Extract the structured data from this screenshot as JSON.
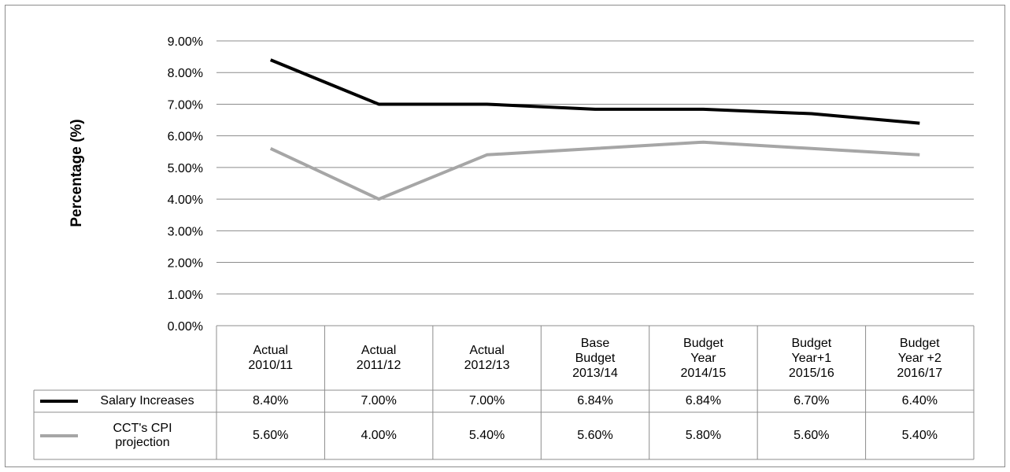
{
  "chart_data": {
    "type": "line",
    "title": "",
    "xlabel": "",
    "ylabel": "Percentage (%)",
    "ylim": [
      0,
      9
    ],
    "ytick_step": 1,
    "yticks": [
      "0.00%",
      "1.00%",
      "2.00%",
      "3.00%",
      "4.00%",
      "5.00%",
      "6.00%",
      "7.00%",
      "8.00%",
      "9.00%"
    ],
    "grid": true,
    "legend_placement": "data-table",
    "categories": [
      "Actual\n2010/11",
      "Actual\n2011/12",
      "Actual\n2012/13",
      "Base\nBudget\n2013/14",
      "Budget\nYear\n2014/15",
      "Budget\nYear+1\n2015/16",
      "Budget\nYear +2\n2016/17"
    ],
    "series": [
      {
        "name": "Salary Increases",
        "color": "#000000",
        "values": [
          8.4,
          7.0,
          7.0,
          6.84,
          6.84,
          6.7,
          6.4
        ],
        "labels": [
          "8.40%",
          "7.00%",
          "7.00%",
          "6.84%",
          "6.84%",
          "6.70%",
          "6.40%"
        ]
      },
      {
        "name": "CCT's CPI projection",
        "color": "#a6a6a6",
        "values": [
          5.6,
          4.0,
          5.4,
          5.6,
          5.8,
          5.6,
          5.4
        ],
        "labels": [
          "5.60%",
          "4.00%",
          "5.40%",
          "5.60%",
          "5.80%",
          "5.60%",
          "5.40%"
        ]
      }
    ]
  }
}
